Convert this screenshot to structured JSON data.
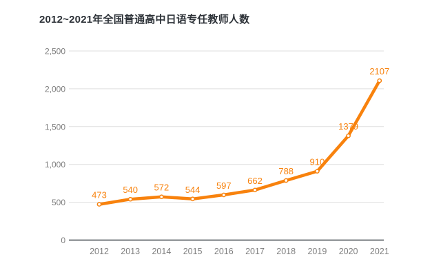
{
  "title": "2012~2021年全国普通高中日语专任教师人数",
  "colors": {
    "series": "#f8820d",
    "data_label": "#f8820d",
    "marker_fill": "#ffffff",
    "grid_line": "#dfdfdf",
    "axis_line": "#3f444a",
    "tick_label": "#7e7e7e",
    "title_text": "#2d3238",
    "background": "#ffffff"
  },
  "chart_data": {
    "type": "line",
    "title": "2012~2021年全国普通高中日语专任教师人数",
    "categories": [
      "2012",
      "2013",
      "2014",
      "2015",
      "2016",
      "2017",
      "2018",
      "2019",
      "2020",
      "2021"
    ],
    "values": [
      473,
      540,
      572,
      544,
      597,
      662,
      788,
      910,
      1379,
      2107
    ],
    "data_labels": [
      "473",
      "540",
      "572",
      "544",
      "597",
      "662",
      "788",
      "910",
      "1379",
      "2107"
    ],
    "y_ticks": [
      {
        "value": 0,
        "label": "0"
      },
      {
        "value": 500,
        "label": "500"
      },
      {
        "value": 1000,
        "label": "1,000"
      },
      {
        "value": 1500,
        "label": "1,500"
      },
      {
        "value": 2000,
        "label": "2,000"
      },
      {
        "value": 2500,
        "label": "2,500"
      }
    ],
    "ylim": [
      0,
      2500
    ],
    "xlabel": "",
    "ylabel": "",
    "grid": "horizontal",
    "legend": "none",
    "marker": "open-circle"
  }
}
